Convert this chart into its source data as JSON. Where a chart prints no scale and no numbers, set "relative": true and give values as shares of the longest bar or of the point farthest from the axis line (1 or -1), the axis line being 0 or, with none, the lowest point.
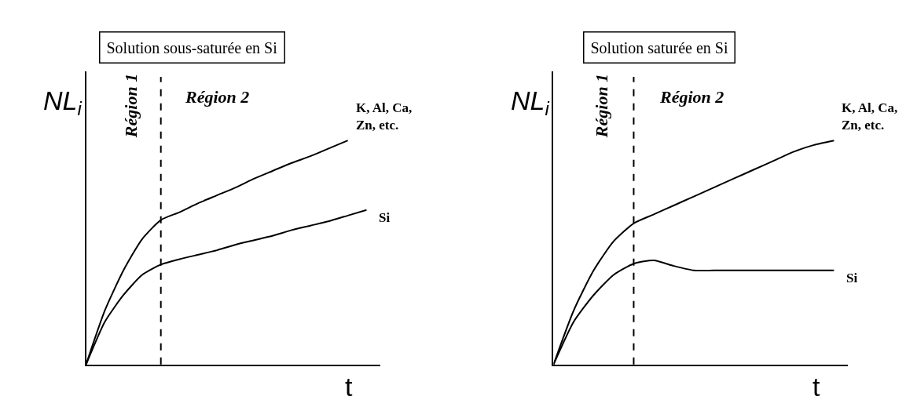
{
  "chart_data": [
    {
      "type": "line",
      "title": "Solution sous-saturée en Si",
      "ylabel": "NL$_{i}$",
      "xlabel": "t",
      "relative": true,
      "legend": false,
      "marker": "none",
      "line_style": "solid",
      "categories": [
        null,
        null,
        null,
        null,
        null,
        null,
        null,
        null,
        null,
        null,
        null,
        null,
        null,
        null,
        null,
        null
      ],
      "series": [
        {
          "name": "K, Al, Ca,\nZn, etc.",
          "color": "#000000",
          "values": [
            0,
            0.24,
            0.42,
            0.56,
            0.645,
            0.68,
            0.72,
            0.755,
            0.79,
            0.83,
            0.865,
            0.9,
            0.93,
            0.965,
            1.0,
            null
          ]
        },
        {
          "name": "Si",
          "color": "#000000",
          "values": [
            0,
            0.19,
            0.31,
            0.4,
            0.446,
            0.47,
            0.49,
            0.51,
            0.535,
            0.555,
            0.575,
            0.6,
            0.62,
            0.64,
            0.665,
            0.69
          ]
        }
      ],
      "annotations": [
        "Région 1",
        "Région 2"
      ]
    },
    {
      "type": "line",
      "title": "Solution saturée en Si",
      "ylabel": "NL$_{i}$",
      "xlabel": "t",
      "relative": true,
      "legend": false,
      "marker": "none",
      "line_style": "solid",
      "categories": [
        null,
        null,
        null,
        null,
        null,
        null,
        null,
        null,
        null,
        null,
        null,
        null,
        null,
        null,
        null
      ],
      "series": [
        {
          "name": "K, Al, Ca,\nZn, etc.",
          "color": "#000000",
          "values": [
            0,
            0.24,
            0.42,
            0.55,
            0.63,
            0.67,
            0.71,
            0.75,
            0.79,
            0.83,
            0.87,
            0.91,
            0.95,
            0.98,
            1.0
          ]
        },
        {
          "name": "Si",
          "color": "#000000",
          "values": [
            0,
            0.19,
            0.31,
            0.4,
            0.45,
            0.465,
            0.44,
            0.42,
            0.42,
            0.42,
            0.42,
            0.42,
            0.42,
            0.42,
            0.42
          ]
        }
      ],
      "annotations": [
        "Région 1",
        "Région 2"
      ]
    }
  ]
}
